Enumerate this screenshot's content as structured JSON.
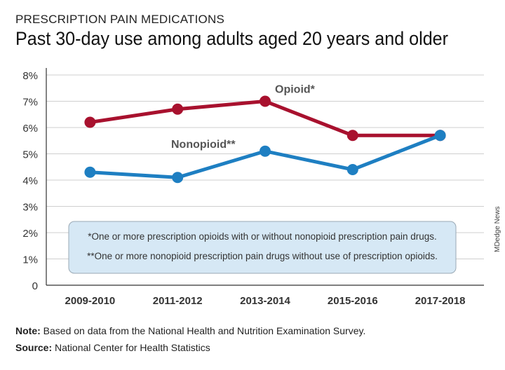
{
  "kicker": "PRESCRIPTION PAIN MEDICATIONS",
  "title": "Past 30-day use among adults aged 20 years and older",
  "note": {
    "label": "Note:",
    "text": " Based on data from the National Health and Nutrition Examination Survey."
  },
  "source": {
    "label": "Source:",
    "text": " National Center for Health Statistics"
  },
  "credit": "MDedge News",
  "colors": {
    "opioid": "#a8112e",
    "nonopioid": "#1e7fc2",
    "grid": "#cfcfcf",
    "legend_box_fill": "#d6e8f5",
    "legend_box_stroke": "#9aa9b5"
  },
  "chart_data": {
    "type": "line",
    "categories": [
      "2009-2010",
      "2011-2012",
      "2013-2014",
      "2015-2016",
      "2017-2018"
    ],
    "y_ticks": [
      "0",
      "1%",
      "2%",
      "3%",
      "4%",
      "5%",
      "6%",
      "7%",
      "8%"
    ],
    "ylim": [
      0,
      8
    ],
    "grid": true,
    "series": [
      {
        "name": "Opioid*",
        "color_key": "opioid",
        "values": [
          6.2,
          6.7,
          7.0,
          5.7,
          5.7
        ]
      },
      {
        "name": "Nonopioid**",
        "color_key": "nonopioid",
        "values": [
          4.3,
          4.1,
          5.1,
          4.4,
          5.7
        ]
      }
    ],
    "legend_notes": [
      "*One or more prescription opioids with or without nonopioid prescription pain drugs.",
      "**One or more nonopioid prescription pain drugs without use of prescription opioids."
    ]
  }
}
